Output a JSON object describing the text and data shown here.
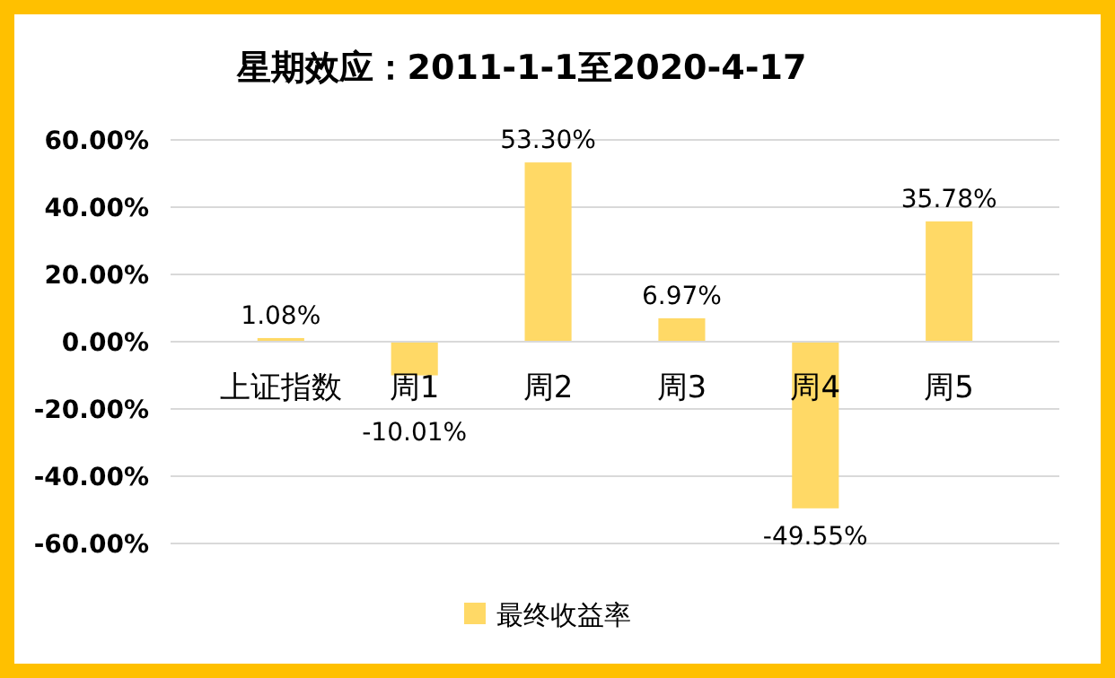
{
  "chart_data": {
    "type": "bar",
    "title": "星期效应：2011-1-1至2020-4-17",
    "categories": [
      "上证指数",
      "周1",
      "周2",
      "周3",
      "周4",
      "周5"
    ],
    "series": [
      {
        "name": "最终收益率",
        "color": "#ffd966",
        "values": [
          1.08,
          -10.01,
          53.3,
          6.97,
          -49.55,
          35.78
        ],
        "value_labels": [
          "1.08%",
          "-10.01%",
          "53.30%",
          "6.97%",
          "-49.55%",
          "35.78%"
        ]
      }
    ],
    "ylim": [
      -60,
      60
    ],
    "yticks": [
      {
        "value": -60,
        "label": "-60.00%"
      },
      {
        "value": -40,
        "label": "-40.00%"
      },
      {
        "value": -20,
        "label": "-20.00%"
      },
      {
        "value": 0,
        "label": "0.00%"
      },
      {
        "value": 20,
        "label": "20.00%"
      },
      {
        "value": 40,
        "label": "40.00%"
      },
      {
        "value": 60,
        "label": "60.00%"
      }
    ],
    "grid": "y",
    "legend": "bottom"
  }
}
